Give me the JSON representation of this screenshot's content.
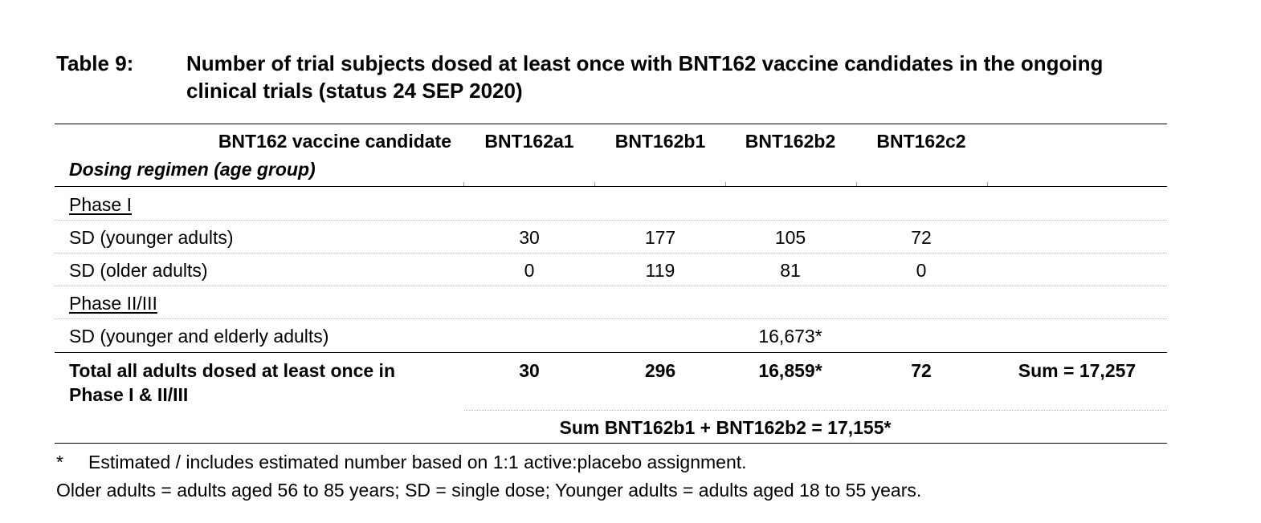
{
  "caption": {
    "label": "Table 9:",
    "text": "Number of trial subjects dosed at least once with BNT162 vaccine candidates in the ongoing clinical trials (status 24 SEP 2020)"
  },
  "table": {
    "header": {
      "candidate_label": "BNT162 vaccine candidate",
      "regimen_label": "Dosing regimen (age group)",
      "columns": [
        "BNT162a1",
        "BNT162b1",
        "BNT162b2",
        "BNT162c2"
      ]
    },
    "phase1": {
      "label": "Phase I",
      "rows": [
        {
          "label": "SD (younger adults)",
          "values": [
            "30",
            "177",
            "105",
            "72"
          ]
        },
        {
          "label": "SD (older adults)",
          "values": [
            "0",
            "119",
            "81",
            "0"
          ]
        }
      ]
    },
    "phase2": {
      "label": "Phase II/III",
      "rows": [
        {
          "label": "SD (younger and elderly adults)",
          "values": [
            "",
            "",
            "16,673*",
            ""
          ]
        }
      ]
    },
    "total": {
      "label_line1": "Total all adults dosed at least once in",
      "label_line2": "Phase I & II/III",
      "values": [
        "30",
        "296",
        "16,859*",
        "72"
      ],
      "sum": "Sum = 17,257"
    },
    "combined_sum": "Sum BNT162b1 + BNT162b2 = 17,155*"
  },
  "footnotes": {
    "asterisk_mark": "*",
    "asterisk_text": "Estimated / includes estimated number based on 1:1 active:placebo assignment.",
    "abbreviations": "Older adults = adults aged 56 to 85 years; SD = single dose; Younger adults = adults aged 18 to 55 years."
  }
}
